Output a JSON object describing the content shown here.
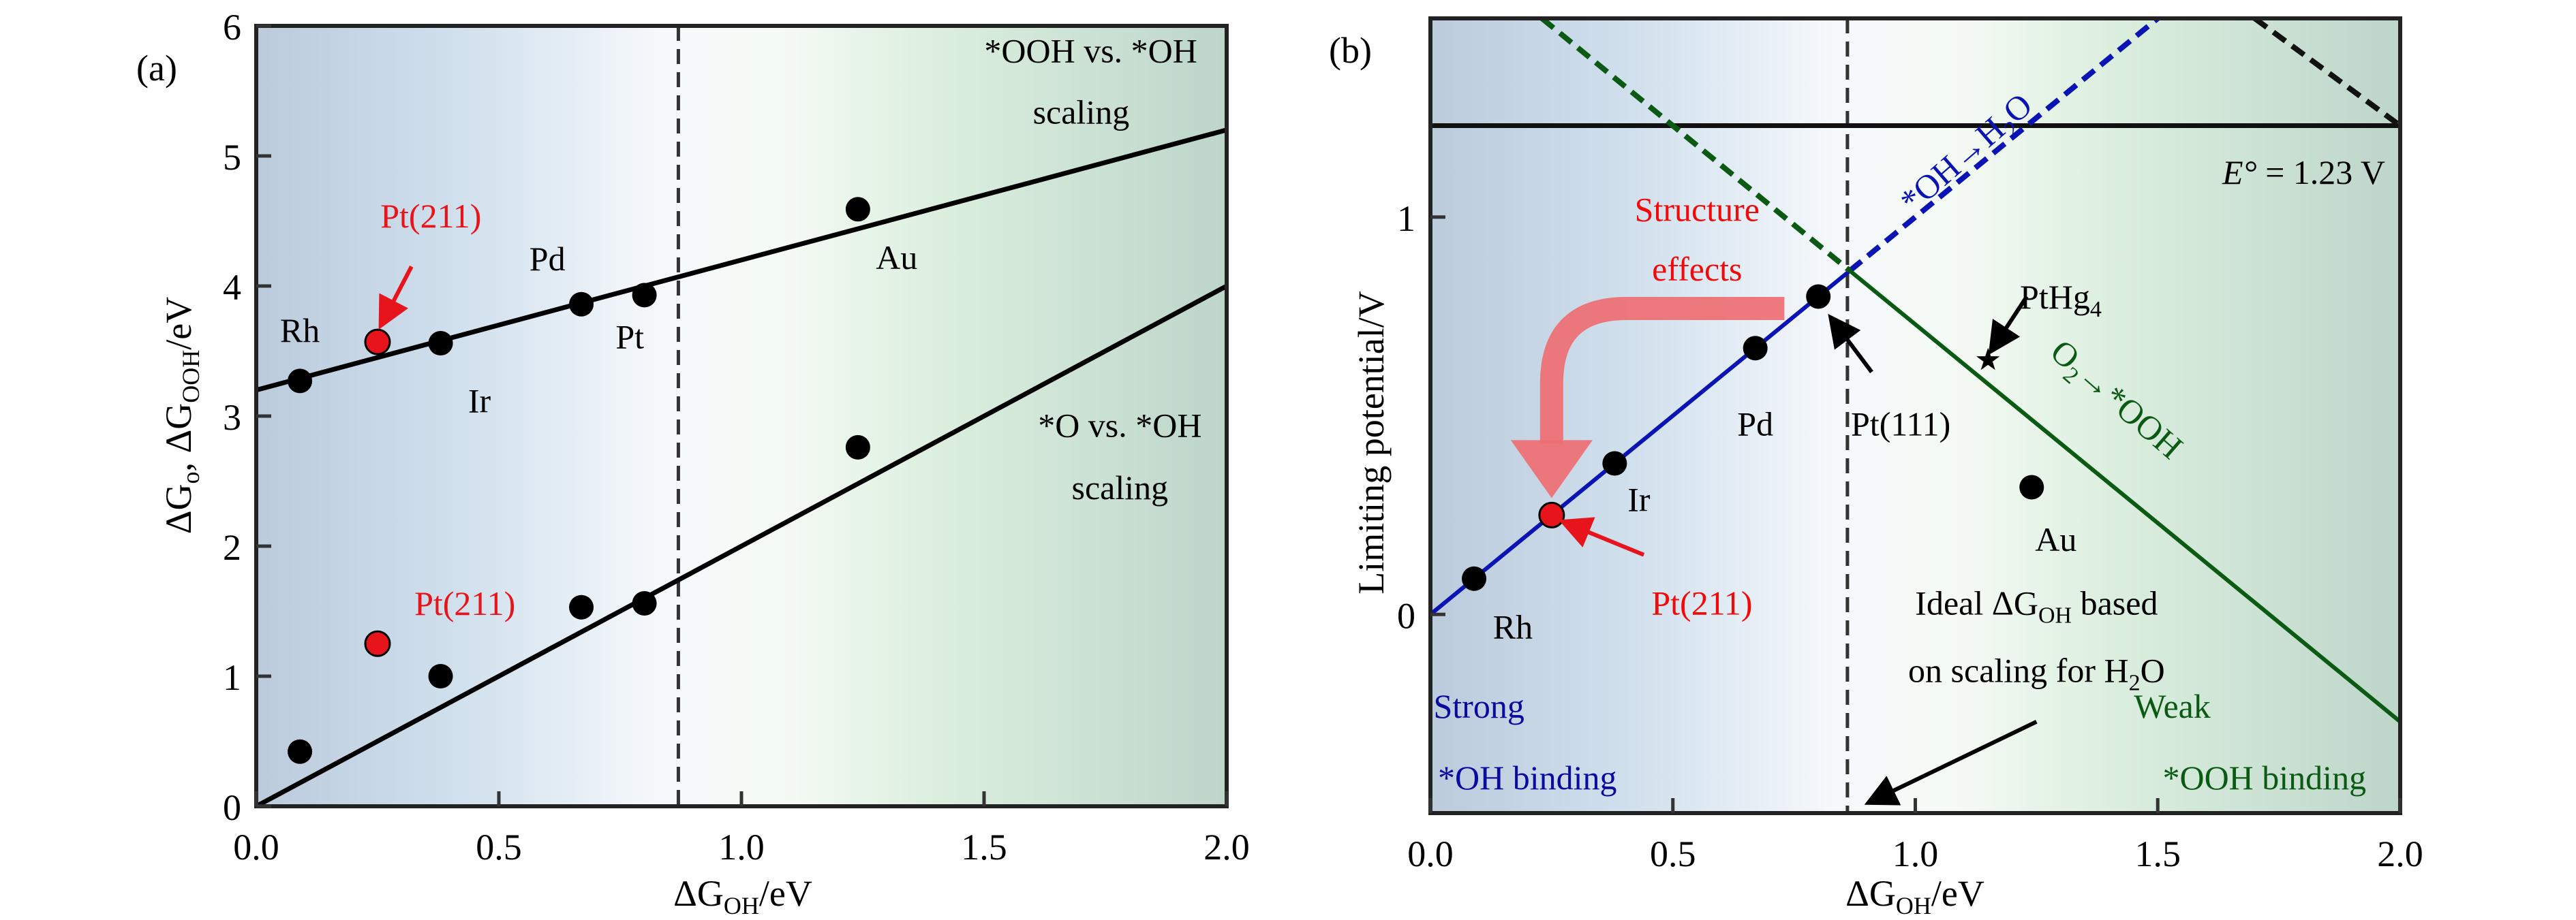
{
  "figure": {
    "background": "#ffffff",
    "region_colors": {
      "strong": "#bccbdc",
      "mid": "#f6f9fc",
      "weak": "#bdd6c9"
    }
  },
  "chart_data": [
    {
      "panel": "(a)",
      "type": "scatter",
      "title": "",
      "xlabel": "ΔG_OH/eV",
      "ylabel": "ΔG_O, ΔG_OOH/eV",
      "xlim": [
        0.0,
        2.0
      ],
      "ylim": [
        0,
        6
      ],
      "xticks": [
        0.0,
        0.5,
        1.0,
        1.5,
        2.0
      ],
      "xtick_labels": [
        "0.0",
        "0.5",
        "1.0",
        "1.5",
        "2.0"
      ],
      "yticks": [
        0,
        1,
        2,
        3,
        4,
        5,
        6
      ],
      "ytick_labels": [
        "0",
        "1",
        "2",
        "3",
        "4",
        "5",
        "6"
      ],
      "grid": false,
      "vertical_dashed_line_x": 0.87,
      "series": [
        {
          "name": "*OOH vs. *OH",
          "color": "#000000",
          "points": [
            {
              "label": "Rh",
              "x": 0.09,
              "y": 3.27,
              "color": "#000000"
            },
            {
              "label": "Pt(211)",
              "x": 0.25,
              "y": 3.57,
              "color": "#e8141b"
            },
            {
              "label": "Ir",
              "x": 0.38,
              "y": 3.56,
              "color": "#000000"
            },
            {
              "label": "Pd",
              "x": 0.67,
              "y": 3.86,
              "color": "#000000"
            },
            {
              "label": "Pt",
              "x": 0.8,
              "y": 3.93,
              "color": "#000000"
            },
            {
              "label": "Au",
              "x": 1.24,
              "y": 4.59,
              "color": "#000000"
            }
          ],
          "fit_line": {
            "slope": 1.0,
            "intercept": 3.2
          }
        },
        {
          "name": "*O vs. *OH",
          "color": "#000000",
          "points": [
            {
              "label": "Rh",
              "x": 0.09,
              "y": 0.42,
              "color": "#000000"
            },
            {
              "label": "Pt(211)",
              "x": 0.25,
              "y": 1.25,
              "color": "#e8141b"
            },
            {
              "label": "Ir",
              "x": 0.38,
              "y": 1.0,
              "color": "#000000"
            },
            {
              "label": "Pd",
              "x": 0.67,
              "y": 1.53,
              "color": "#000000"
            },
            {
              "label": "Pt",
              "x": 0.8,
              "y": 1.56,
              "color": "#000000"
            },
            {
              "label": "Au",
              "x": 1.24,
              "y": 2.76,
              "color": "#000000"
            }
          ],
          "fit_line": {
            "slope": 2.0,
            "intercept": 0.0
          }
        }
      ],
      "annotations": [
        {
          "text": "*OOH vs. *OH",
          "x": 1.72,
          "y": 5.72,
          "color": "#000000"
        },
        {
          "text": "scaling",
          "x": 1.7,
          "y": 5.25,
          "color": "#000000"
        },
        {
          "text": "*O vs. *OH",
          "x": 1.78,
          "y": 2.84,
          "color": "#000000"
        },
        {
          "text": "scaling",
          "x": 1.78,
          "y": 2.36,
          "color": "#000000"
        },
        {
          "text": "Rh",
          "x": 0.09,
          "y": 3.57,
          "color": "#000000"
        },
        {
          "text": "Pt(211)",
          "x": 0.36,
          "y": 4.45,
          "color": "#e8141b"
        },
        {
          "text": "Ir",
          "x": 0.46,
          "y": 3.03,
          "color": "#000000"
        },
        {
          "text": "Pd",
          "x": 0.6,
          "y": 4.12,
          "color": "#000000"
        },
        {
          "text": "Pt",
          "x": 0.77,
          "y": 3.52,
          "color": "#000000"
        },
        {
          "text": "Au",
          "x": 1.32,
          "y": 4.13,
          "color": "#000000"
        },
        {
          "text": "Pt(211)",
          "x": 0.43,
          "y": 1.47,
          "color": "#e8141b"
        }
      ],
      "arrows": [
        {
          "from": [
            0.32,
            4.15
          ],
          "to": [
            0.26,
            3.72
          ],
          "color": "#e8141b"
        }
      ]
    },
    {
      "panel": "(b)",
      "type": "line",
      "title": "",
      "xlabel": "ΔG_OH/eV",
      "ylabel": "Limiting potential/V",
      "xlim": [
        0.0,
        2.0
      ],
      "ylim": [
        -0.5,
        1.5
      ],
      "xticks": [
        0.0,
        0.5,
        1.0,
        1.5,
        2.0
      ],
      "xtick_labels": [
        "0.0",
        "0.5",
        "1.0",
        "1.5",
        "2.0"
      ],
      "yticks": [
        0,
        1
      ],
      "ytick_labels": [
        "0",
        "1"
      ],
      "grid": false,
      "vertical_dashed_line_x": 0.86,
      "equilibrium_potential": {
        "value": 1.23,
        "label_prefix": "E°",
        "label": " = 1.23 V"
      },
      "series": [
        {
          "name": "*OH→H2O",
          "color": "#0a14b4",
          "solid": [
            [
              0.0,
              0.0
            ],
            [
              0.865,
              0.865
            ]
          ],
          "dashed": [
            [
              0.865,
              0.865
            ],
            [
              1.5,
              1.5
            ]
          ]
        },
        {
          "name": "O2→*OOH",
          "color": "#0b5a14",
          "solid": [
            [
              0.865,
              0.865
            ],
            [
              2.0,
              -0.27
            ]
          ],
          "dashed": [
            [
              0.23,
              1.5
            ],
            [
              0.865,
              0.865
            ]
          ]
        },
        {
          "name": "upper dashed",
          "color": "#111111",
          "dashed": [
            [
              1.7,
              1.5
            ],
            [
              2.0,
              1.23
            ]
          ]
        }
      ],
      "points": [
        {
          "label": "Rh",
          "x": 0.09,
          "y": 0.09,
          "color": "#000000",
          "marker": "circle"
        },
        {
          "label": "Pt(211)",
          "x": 0.25,
          "y": 0.25,
          "color": "#e8141b",
          "marker": "circle"
        },
        {
          "label": "Ir",
          "x": 0.38,
          "y": 0.38,
          "color": "#000000",
          "marker": "circle"
        },
        {
          "label": "Pd",
          "x": 0.67,
          "y": 0.67,
          "color": "#000000",
          "marker": "circle"
        },
        {
          "label": "Pt(111)",
          "x": 0.8,
          "y": 0.8,
          "color": "#000000",
          "marker": "circle"
        },
        {
          "label": "Au",
          "x": 1.24,
          "y": 0.32,
          "color": "#000000",
          "marker": "circle"
        },
        {
          "label": "PtHg4",
          "x": 1.15,
          "y": 0.64,
          "color": "#000000",
          "marker": "star"
        }
      ],
      "annotations": [
        {
          "text": "Structure",
          "x": 0.55,
          "y": 0.99,
          "color": "#f20a0a"
        },
        {
          "text": "effects",
          "x": 0.55,
          "y": 0.84,
          "color": "#f20a0a"
        },
        {
          "text": "Rh",
          "x": 0.17,
          "y": -0.06,
          "color": "#000000"
        },
        {
          "text": "Ir",
          "x": 0.43,
          "y": 0.26,
          "color": "#000000"
        },
        {
          "text": "Pd",
          "x": 0.67,
          "y": 0.45,
          "color": "#000000"
        },
        {
          "text": "Pt(111)",
          "x": 0.97,
          "y": 0.45,
          "color": "#000000"
        },
        {
          "text": "Pt(211)",
          "x": 0.56,
          "y": 0.0,
          "color": "#f20a0a"
        },
        {
          "text": "Au",
          "x": 1.29,
          "y": 0.16,
          "color": "#000000"
        },
        {
          "text": "PtHg4",
          "x": 1.3,
          "y": 0.77,
          "color": "#000000"
        },
        {
          "text": "Strong",
          "x": 0.1,
          "y": -0.26,
          "color": "#0a0aa0"
        },
        {
          "text": "*OH binding",
          "x": 0.2,
          "y": -0.44,
          "color": "#0a0aa0"
        },
        {
          "text": "Weak",
          "x": 1.53,
          "y": -0.26,
          "color": "#0b5a14"
        },
        {
          "text": "*OOH binding",
          "x": 1.72,
          "y": -0.44,
          "color": "#0b5a14"
        },
        {
          "text": "Ideal ΔG_OH based",
          "x": 1.25,
          "y": 0.0,
          "color": "#000000"
        },
        {
          "text": "on scaling for H2O",
          "x": 1.25,
          "y": -0.17,
          "color": "#000000"
        },
        {
          "text": "*OH→H2O",
          "x": 1.12,
          "y": 1.14,
          "color": "#0a14b4",
          "rotation": -41
        },
        {
          "text": "O2→*OOH",
          "x": 1.4,
          "y": 0.52,
          "color": "#0b5a14",
          "rotation": 41
        }
      ],
      "arrows": [
        {
          "from": [
            0.44,
            0.15
          ],
          "to": [
            0.28,
            0.23
          ],
          "color": "#e8141b"
        },
        {
          "from": [
            0.91,
            0.61
          ],
          "to": [
            0.83,
            0.74
          ],
          "color": "#000000"
        },
        {
          "from": [
            1.23,
            0.8
          ],
          "to": [
            1.16,
            0.67
          ],
          "color": "#000000"
        },
        {
          "from": [
            1.25,
            -0.27
          ],
          "to": [
            0.91,
            -0.47
          ],
          "color": "#000000"
        }
      ],
      "structure_arrow": {
        "color": "#ee6e72",
        "from": [
          0.73,
          0.77
        ],
        "corner": [
          0.25,
          0.77
        ],
        "to": [
          0.25,
          0.31
        ]
      }
    }
  ]
}
